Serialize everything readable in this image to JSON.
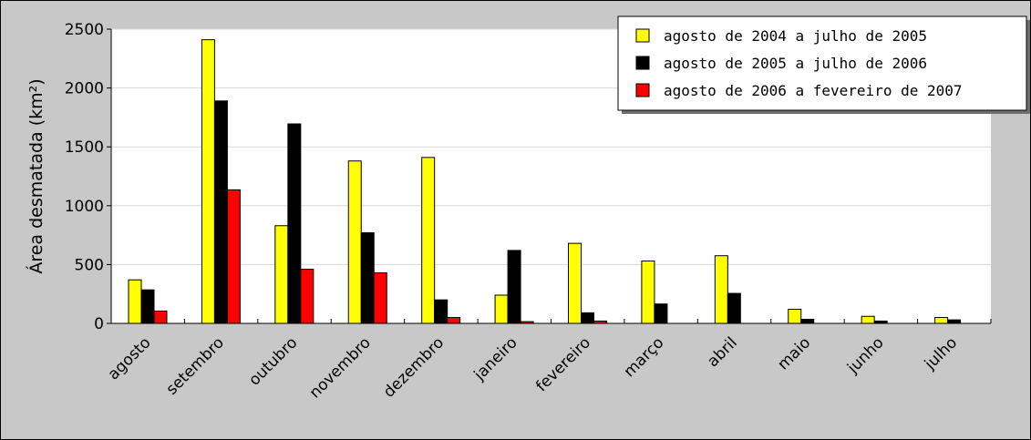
{
  "chart_data": {
    "type": "bar",
    "title": "",
    "xlabel": "",
    "ylabel": "Área desmatada (km²)",
    "ylim": [
      0,
      2500
    ],
    "yticks": [
      0,
      500,
      1000,
      1500,
      2000,
      2500
    ],
    "grid": true,
    "legend_position": "top-right",
    "categories": [
      "agosto",
      "setembro",
      "outubro",
      "novembro",
      "dezembro",
      "janeiro",
      "fevereiro",
      "março",
      "abril",
      "maio",
      "junho",
      "julho"
    ],
    "series": [
      {
        "name": "agosto de 2004 a julho de 2005",
        "color": "#ffff00",
        "values": [
          370,
          2410,
          830,
          1380,
          1410,
          240,
          680,
          530,
          575,
          120,
          60,
          50
        ]
      },
      {
        "name": "agosto de 2005 a julho de 2006",
        "color": "#000000",
        "values": [
          285,
          1890,
          1695,
          770,
          200,
          620,
          90,
          165,
          255,
          35,
          20,
          30
        ]
      },
      {
        "name": "agosto de 2006 a fevereiro de 2007",
        "color": "#ff0000",
        "values": [
          105,
          1135,
          460,
          430,
          50,
          15,
          20,
          null,
          null,
          null,
          null,
          null
        ]
      }
    ]
  }
}
